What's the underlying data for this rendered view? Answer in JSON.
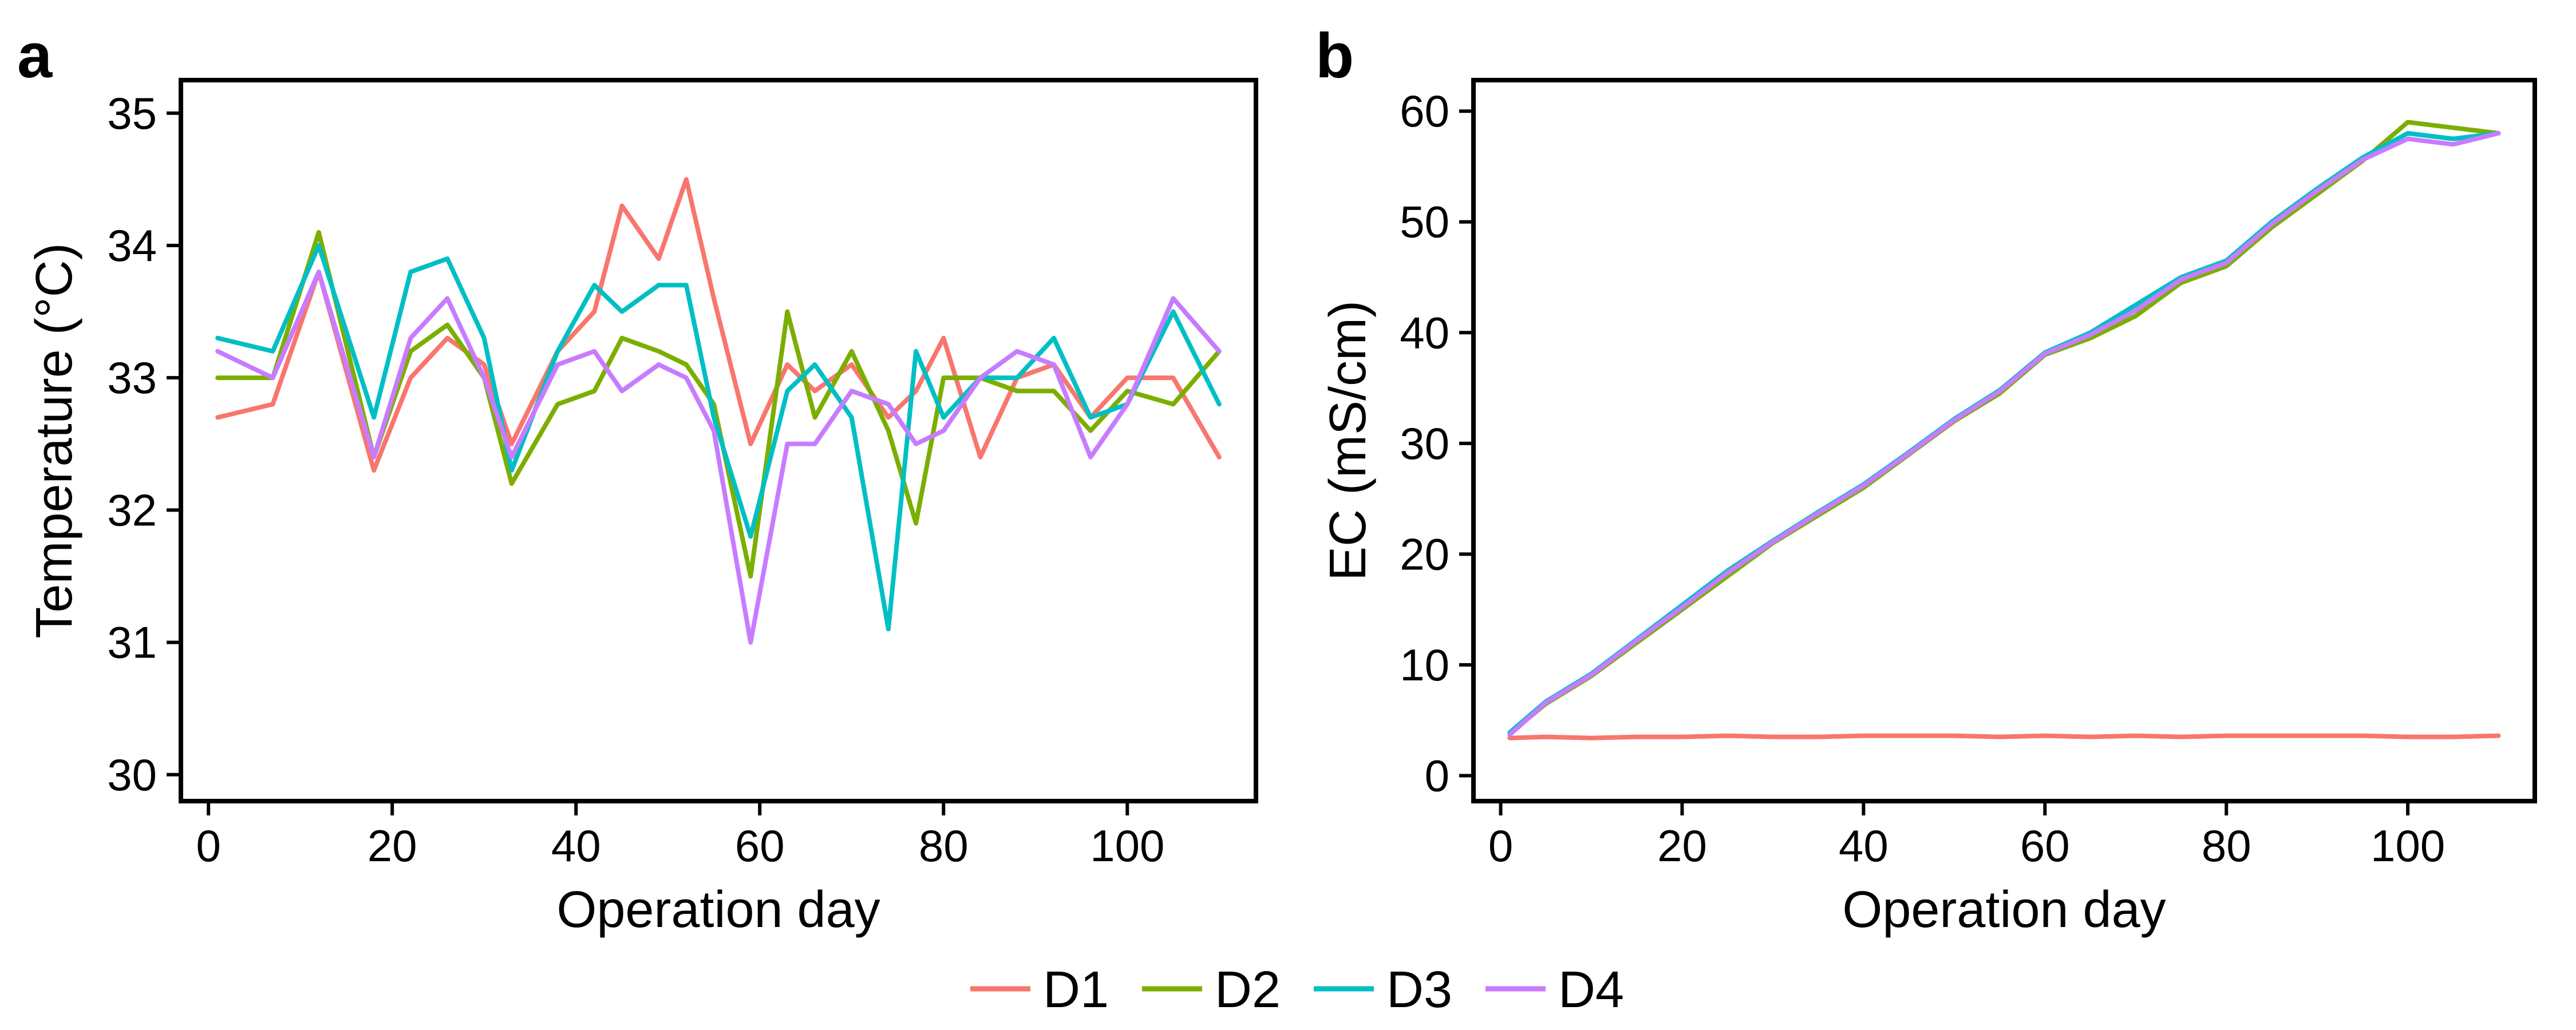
{
  "legend": {
    "entries": [
      {
        "name": "D1",
        "color": "#F8766D"
      },
      {
        "name": "D2",
        "color": "#7CAE00"
      },
      {
        "name": "D3",
        "color": "#00BFC4"
      },
      {
        "name": "D4",
        "color": "#C77CFF"
      }
    ],
    "placement": "bottom-center"
  },
  "chart_data": [
    {
      "panel": "a",
      "type": "line",
      "xlabel": "Operation day",
      "ylabel": "Temperature (°C)",
      "xlim": [
        -3,
        114
      ],
      "ylim": [
        29.8,
        35.25
      ],
      "xticks": [
        0,
        20,
        40,
        60,
        80,
        100
      ],
      "yticks": [
        30,
        31,
        32,
        33,
        34,
        35
      ],
      "grid": false,
      "x": [
        1,
        7,
        12,
        18,
        22,
        26,
        30,
        33,
        38,
        42,
        45,
        49,
        52,
        55,
        59,
        63,
        66,
        70,
        74,
        77,
        80,
        84,
        88,
        92,
        96,
        100,
        105,
        110
      ],
      "series": [
        {
          "name": "D1",
          "values": [
            32.7,
            32.8,
            33.8,
            32.3,
            33.0,
            33.3,
            33.1,
            32.5,
            33.2,
            33.5,
            34.3,
            33.9,
            34.5,
            33.6,
            32.5,
            33.1,
            32.9,
            33.1,
            32.7,
            32.9,
            33.3,
            32.4,
            33.0,
            33.1,
            32.7,
            33.0,
            33.0,
            32.4
          ]
        },
        {
          "name": "D2",
          "values": [
            33.0,
            33.0,
            34.1,
            32.4,
            33.2,
            33.4,
            33.0,
            32.2,
            32.8,
            32.9,
            33.3,
            33.2,
            33.1,
            32.8,
            31.5,
            33.5,
            32.7,
            33.2,
            32.6,
            31.9,
            33.0,
            33.0,
            32.9,
            32.9,
            32.6,
            32.9,
            32.8,
            33.2
          ]
        },
        {
          "name": "D3",
          "values": [
            33.3,
            33.2,
            34.0,
            32.7,
            33.8,
            33.9,
            33.3,
            32.3,
            33.2,
            33.7,
            33.5,
            33.7,
            33.7,
            32.7,
            31.8,
            32.9,
            33.1,
            32.7,
            31.1,
            33.2,
            32.7,
            33.0,
            33.0,
            33.3,
            32.7,
            32.8,
            33.5,
            32.8
          ]
        },
        {
          "name": "D4",
          "values": [
            33.2,
            33.0,
            33.8,
            32.4,
            33.3,
            33.6,
            33.0,
            32.4,
            33.1,
            33.2,
            32.9,
            33.1,
            33.0,
            32.6,
            31.0,
            32.5,
            32.5,
            32.9,
            32.8,
            32.5,
            32.6,
            33.0,
            33.2,
            33.1,
            32.4,
            32.8,
            33.6,
            33.2
          ]
        }
      ]
    },
    {
      "panel": "b",
      "type": "line",
      "xlabel": "Operation day",
      "ylabel": "EC (mS/cm)",
      "xlim": [
        -3,
        114
      ],
      "ylim": [
        -2.3,
        62.8
      ],
      "xticks": [
        0,
        20,
        40,
        60,
        80,
        100
      ],
      "yticks": [
        0,
        10,
        20,
        30,
        40,
        50,
        60
      ],
      "grid": false,
      "x": [
        1,
        5,
        10,
        15,
        20,
        25,
        30,
        35,
        40,
        45,
        50,
        55,
        60,
        65,
        70,
        75,
        80,
        85,
        90,
        95,
        100,
        105,
        110
      ],
      "series": [
        {
          "name": "D1",
          "values": [
            3.4,
            3.5,
            3.4,
            3.5,
            3.5,
            3.6,
            3.5,
            3.5,
            3.6,
            3.6,
            3.6,
            3.5,
            3.6,
            3.5,
            3.6,
            3.5,
            3.6,
            3.6,
            3.6,
            3.6,
            3.5,
            3.5,
            3.6
          ]
        },
        {
          "name": "D2",
          "values": [
            3.8,
            6.5,
            9.0,
            12.0,
            15.0,
            18.0,
            21.0,
            23.5,
            26.0,
            29.0,
            32.0,
            34.5,
            38.0,
            39.5,
            41.5,
            44.5,
            46.0,
            49.5,
            52.5,
            55.5,
            59.0,
            58.5,
            58.0
          ]
        },
        {
          "name": "D3",
          "values": [
            3.9,
            6.7,
            9.2,
            12.3,
            15.4,
            18.5,
            21.2,
            23.8,
            26.3,
            29.2,
            32.2,
            34.8,
            38.2,
            40.0,
            42.5,
            45.0,
            46.5,
            50.0,
            53.0,
            55.8,
            58.0,
            57.5,
            58.0
          ]
        },
        {
          "name": "D4",
          "values": [
            3.7,
            6.6,
            9.1,
            12.2,
            15.2,
            18.3,
            21.1,
            23.7,
            26.2,
            29.1,
            32.1,
            34.7,
            38.1,
            39.8,
            42.0,
            44.8,
            46.3,
            49.8,
            52.8,
            55.6,
            57.5,
            57.0,
            58.0
          ]
        }
      ]
    }
  ]
}
